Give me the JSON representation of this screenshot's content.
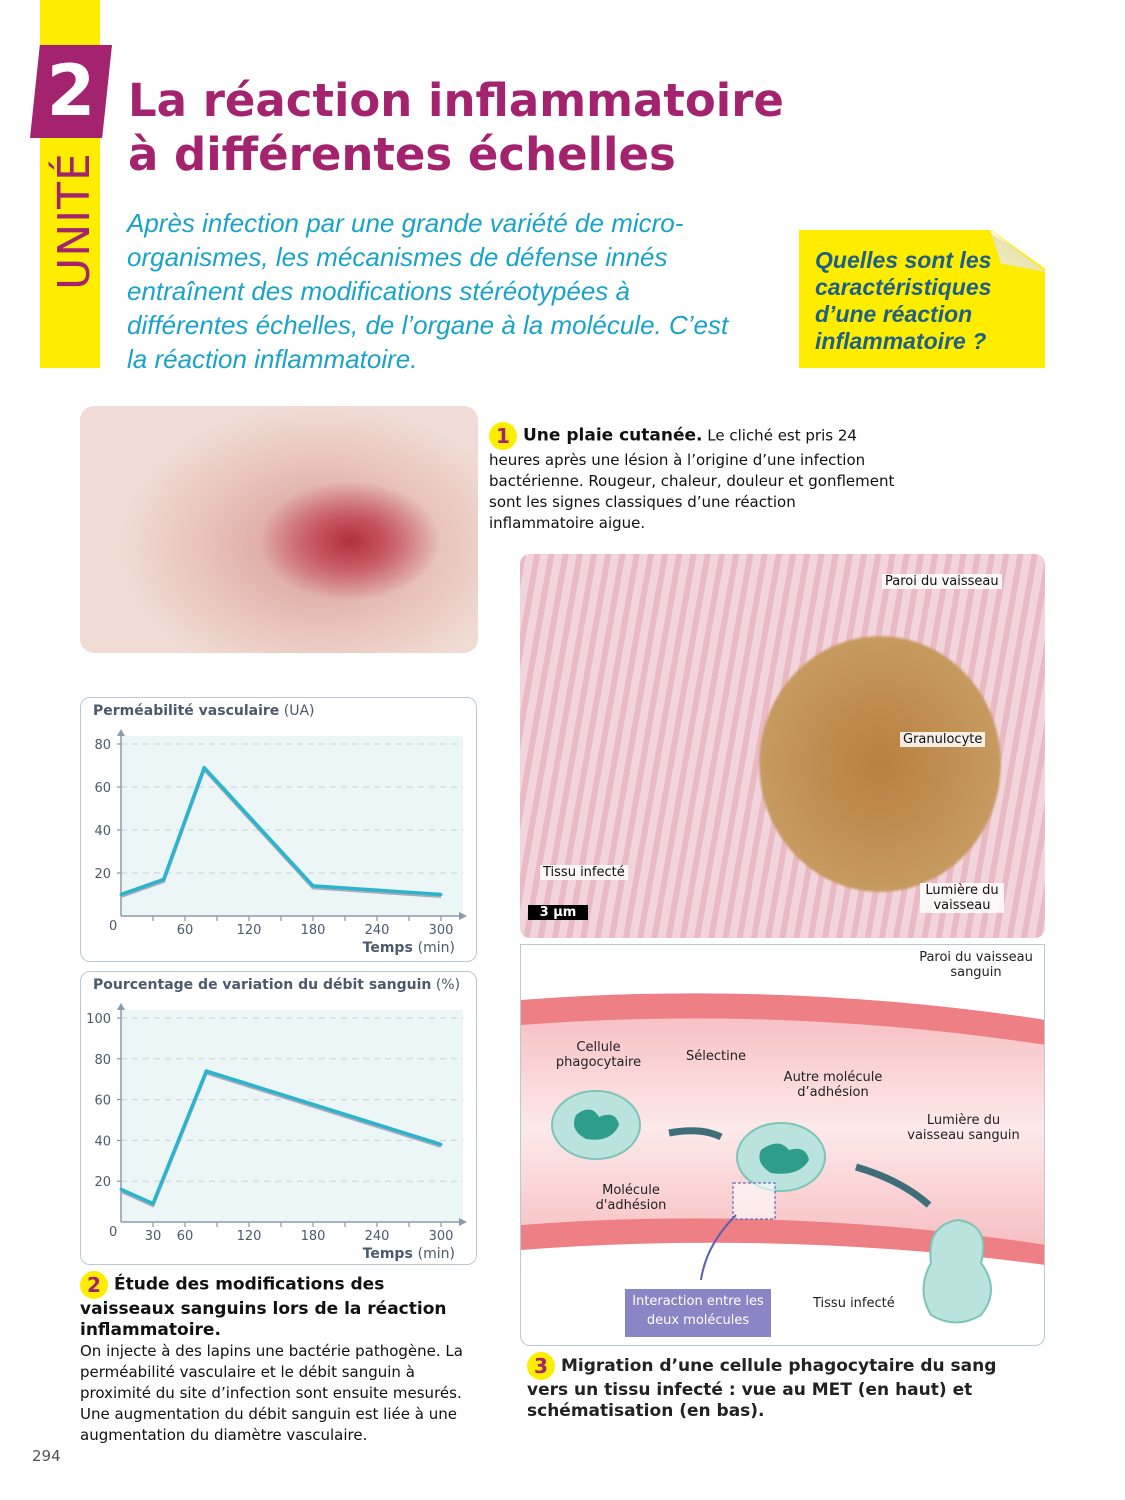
{
  "unit": {
    "number": "2",
    "label": "UNITÉ"
  },
  "title": {
    "line1": "La réaction inflammatoire",
    "line2": "à différentes échelles"
  },
  "intro": "Après infection par une grande variété de micro-organismes, les mécanismes de défense innés entraînent des modifications stéréotypées à différentes échelles, de l’organe à la molécule. C’est la réaction inflammatoire.",
  "question": "Quelles sont les caractéristiques d’une réaction inflammatoire ?",
  "doc1": {
    "number": "1",
    "title": "Une plaie cutanée.",
    "text": " Le cliché est pris 24 heures après une lésion à l’origine d’une infection bactérienne. Rougeur, chaleur, douleur et gonflement sont les signes classiques d’une réaction inflammatoire aigue."
  },
  "met": {
    "labels": {
      "wall": "Paroi du vaisseau",
      "granulocyte": "Granulocyte",
      "tissue": "Tissu infecté",
      "lumen": "Lumière du vaisseau",
      "scale": "3 µm"
    }
  },
  "diagram": {
    "wall": "Paroi du vaisseau sanguin",
    "cell": "Cellule phagocytaire",
    "selectin": "Sélectine",
    "other": "Autre molécule d’adhésion",
    "lumen": "Lumière du vaisseau sanguin",
    "adhesion": "Molécule d'adhésion",
    "interaction": "Interaction entre les deux molécules",
    "tissue": "Tissu infecté"
  },
  "chart_data": [
    {
      "type": "line",
      "title": "Perméabilité vasculaire",
      "title_unit": "(UA)",
      "xlabel": "Temps",
      "xunit": "(min)",
      "x": [
        0,
        40,
        78,
        180,
        300
      ],
      "y": [
        10,
        17,
        69,
        14,
        10
      ],
      "xticks": [
        60,
        120,
        180,
        240,
        300
      ],
      "yticks": [
        20,
        40,
        60,
        80
      ],
      "xlim": [
        0,
        300
      ],
      "ylim": [
        0,
        80
      ],
      "origin": "0",
      "color": "#2bb5cc",
      "grid": "dashed horizontal"
    },
    {
      "type": "line",
      "title": "Pourcentage de variation du débit sanguin",
      "title_unit": "(%)",
      "xlabel": "Temps",
      "xunit": "(min)",
      "x": [
        0,
        30,
        80,
        300
      ],
      "y": [
        16,
        9,
        74,
        38
      ],
      "xticks": [
        30,
        60,
        120,
        180,
        240,
        300
      ],
      "yticks": [
        20,
        40,
        60,
        80,
        100
      ],
      "xlim": [
        0,
        300
      ],
      "ylim": [
        0,
        100
      ],
      "origin": "0",
      "color": "#2bb5cc",
      "grid": "dashed horizontal"
    }
  ],
  "doc2": {
    "number": "2",
    "title": "Étude des modifications des vaisseaux sanguins lors de la réaction inflammatoire.",
    "text": "On injecte à des lapins une bactérie pathogène. La perméabilité vasculaire et le débit sanguin à proximité du site d’infection sont ensuite mesurés. Une augmentation du débit sanguin est liée à une augmentation du diamètre vasculaire."
  },
  "doc3": {
    "number": "3",
    "title": "Migration d’une cellule phagocytaire du sang vers un tissu infecté : vue au MET (en haut) et schématisation (en bas)."
  },
  "page_number": "294",
  "colors": {
    "magenta": "#a3236e",
    "yellow": "#ffed00",
    "cyan": "#1aa3c8",
    "question": "#1d5f87"
  }
}
